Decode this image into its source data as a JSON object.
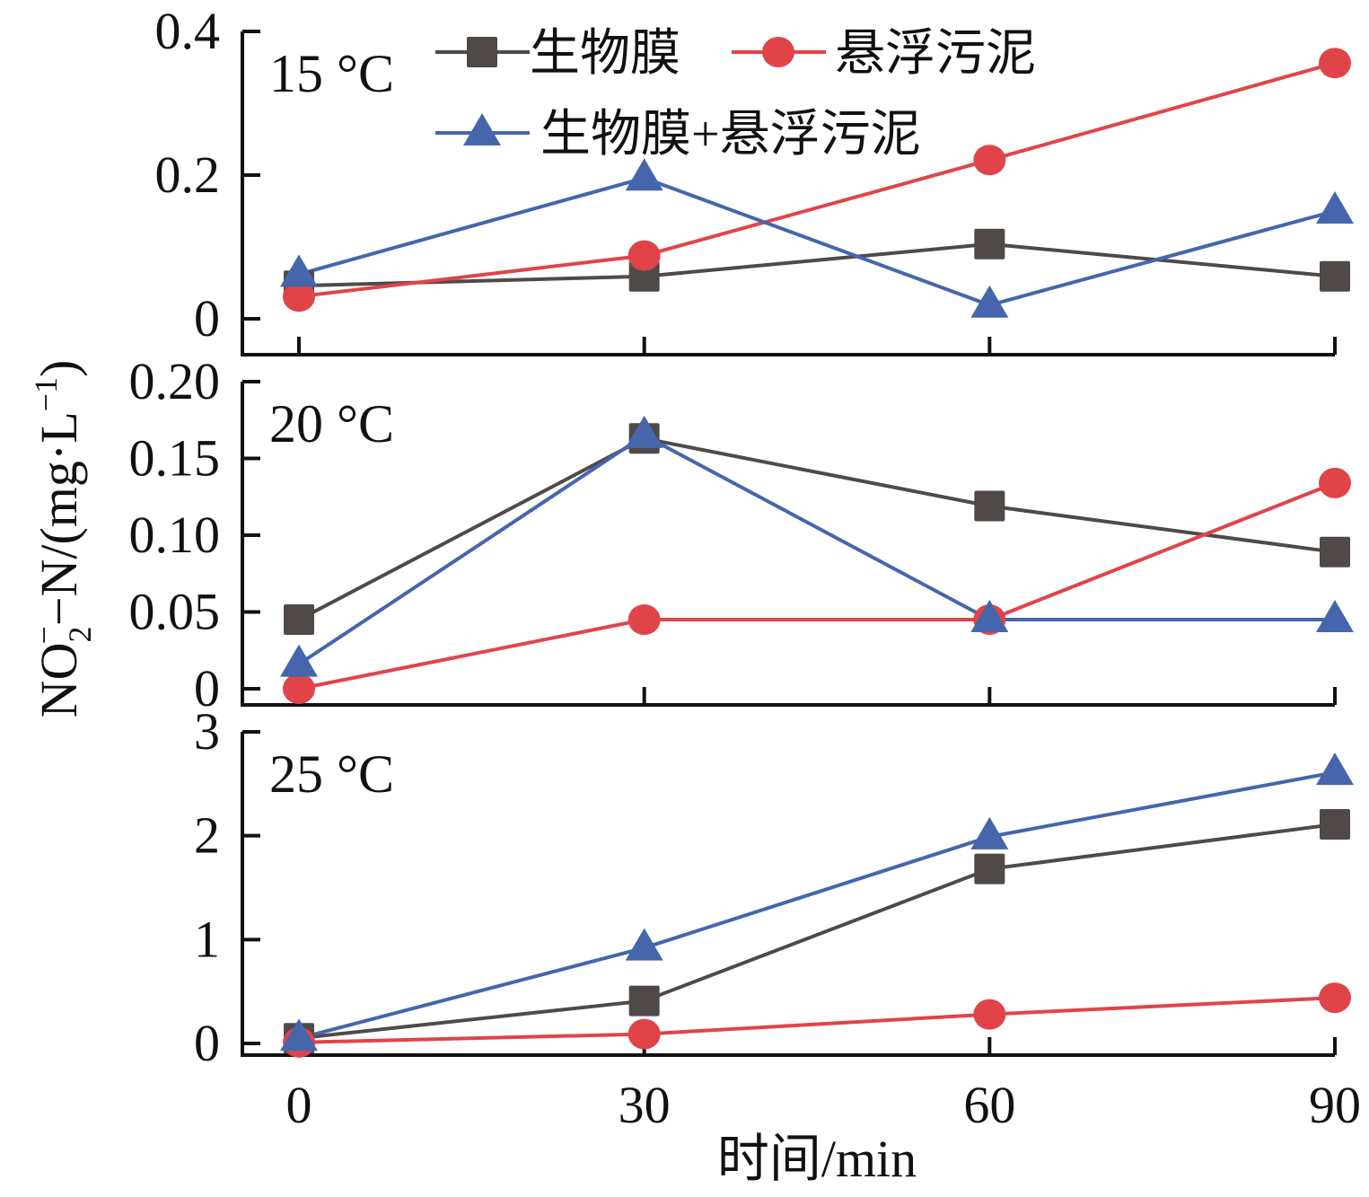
{
  "chart_data": [
    {
      "type": "line",
      "panel_label": "15 °C",
      "x": [
        0,
        30,
        60,
        90
      ],
      "ylim": [
        0,
        0.4
      ],
      "yticks": [
        0,
        0.2,
        0.4
      ],
      "ytick_labels": [
        "0",
        "0.2",
        "0.4"
      ],
      "series": [
        {
          "name": "生物膜",
          "values": [
            0.046,
            0.059,
            0.104,
            0.059
          ]
        },
        {
          "name": "悬浮污泥",
          "values": [
            0.031,
            0.088,
            0.221,
            0.356
          ]
        },
        {
          "name": "生物膜+悬浮污泥",
          "values": [
            0.062,
            0.196,
            0.019,
            0.15
          ]
        }
      ]
    },
    {
      "type": "line",
      "panel_label": "20 °C",
      "x": [
        0,
        30,
        60,
        90
      ],
      "ylim": [
        0,
        0.2
      ],
      "yticks": [
        0,
        0.05,
        0.1,
        0.15,
        0.2
      ],
      "ytick_labels": [
        "0",
        "0.05",
        "0.10",
        "0.15",
        "0.20"
      ],
      "series": [
        {
          "name": "生物膜",
          "values": [
            0.045,
            0.163,
            0.119,
            0.089
          ]
        },
        {
          "name": "悬浮污泥",
          "values": [
            0.0,
            0.045,
            0.045,
            0.134
          ]
        },
        {
          "name": "生物膜+悬浮污泥",
          "values": [
            0.016,
            0.165,
            0.045,
            0.045
          ]
        }
      ]
    },
    {
      "type": "line",
      "panel_label": "25 °C",
      "x": [
        0,
        30,
        60,
        90
      ],
      "ylim": [
        0,
        3
      ],
      "yticks": [
        0,
        1,
        2,
        3
      ],
      "ytick_labels": [
        "0",
        "1",
        "2",
        "3"
      ],
      "series": [
        {
          "name": "生物膜",
          "values": [
            0.05,
            0.41,
            1.68,
            2.11
          ]
        },
        {
          "name": "悬浮污泥",
          "values": [
            0.01,
            0.09,
            0.28,
            0.44
          ]
        },
        {
          "name": "生物膜+悬浮污泥",
          "values": [
            0.05,
            0.92,
            1.99,
            2.61
          ]
        }
      ]
    }
  ],
  "shared": {
    "xlabel": "时间/min",
    "xticks": [
      0,
      30,
      60,
      90
    ],
    "xtick_labels": [
      "0",
      "30",
      "60",
      "90"
    ],
    "xlim": [
      0,
      90
    ],
    "ylabel_main": "NO",
    "ylabel_sub": "2",
    "ylabel_sup": "−",
    "ylabel_rest": "−N/(mg·L",
    "ylabel_exp": "−1",
    "ylabel_close": ")",
    "legend": [
      {
        "label": "生物膜",
        "marker": "square",
        "color": "#4f4a48"
      },
      {
        "label": "悬浮污泥",
        "marker": "circle",
        "color": "#e04449"
      },
      {
        "label": "生物膜+悬浮污泥",
        "marker": "triangle",
        "color": "#4566ad"
      }
    ],
    "legend_position": "top-center",
    "grid": false
  }
}
